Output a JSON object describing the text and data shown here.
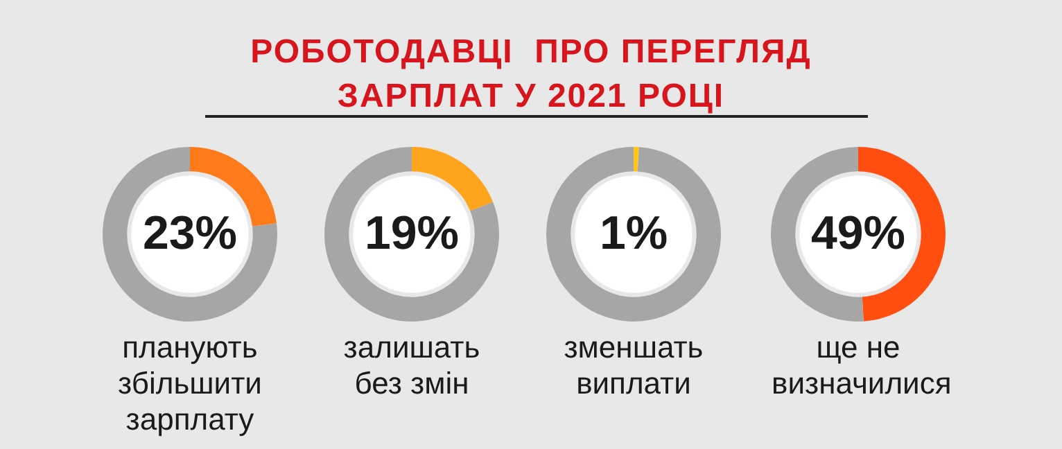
{
  "chart_data": [
    {
      "type": "donut",
      "title": "РОБОТОДАВЦІ  ПРО ПЕРЕГЛЯД\nЗАРПЛАТ У 2021 РОЦІ",
      "xlabel": "планують збільшити зарплату",
      "categories": [
        null,
        null
      ],
      "values": [
        23,
        77
      ],
      "colors": [
        "#ff7a1a",
        "#a6a6a6"
      ],
      "value_labels": [
        "23%",
        null
      ]
    },
    {
      "type": "donut",
      "xlabel": "залишать без змін",
      "categories": [
        null,
        null
      ],
      "values": [
        19,
        81
      ],
      "colors": [
        "#ffa41c",
        "#a6a6a6"
      ],
      "value_labels": [
        "19%",
        null
      ]
    },
    {
      "type": "donut",
      "xlabel": "зменшать виплати",
      "categories": [
        null,
        null
      ],
      "values": [
        1,
        99
      ],
      "colors": [
        "#ffc61a",
        "#a6a6a6"
      ],
      "value_labels": [
        "1%",
        null
      ]
    },
    {
      "type": "donut",
      "xlabel": "ще не визначилися",
      "categories": [
        null,
        null
      ],
      "values": [
        49,
        51
      ],
      "colors": [
        "#ff4e0f",
        "#a6a6a6"
      ],
      "value_labels": [
        "49%",
        null
      ]
    }
  ]
}
